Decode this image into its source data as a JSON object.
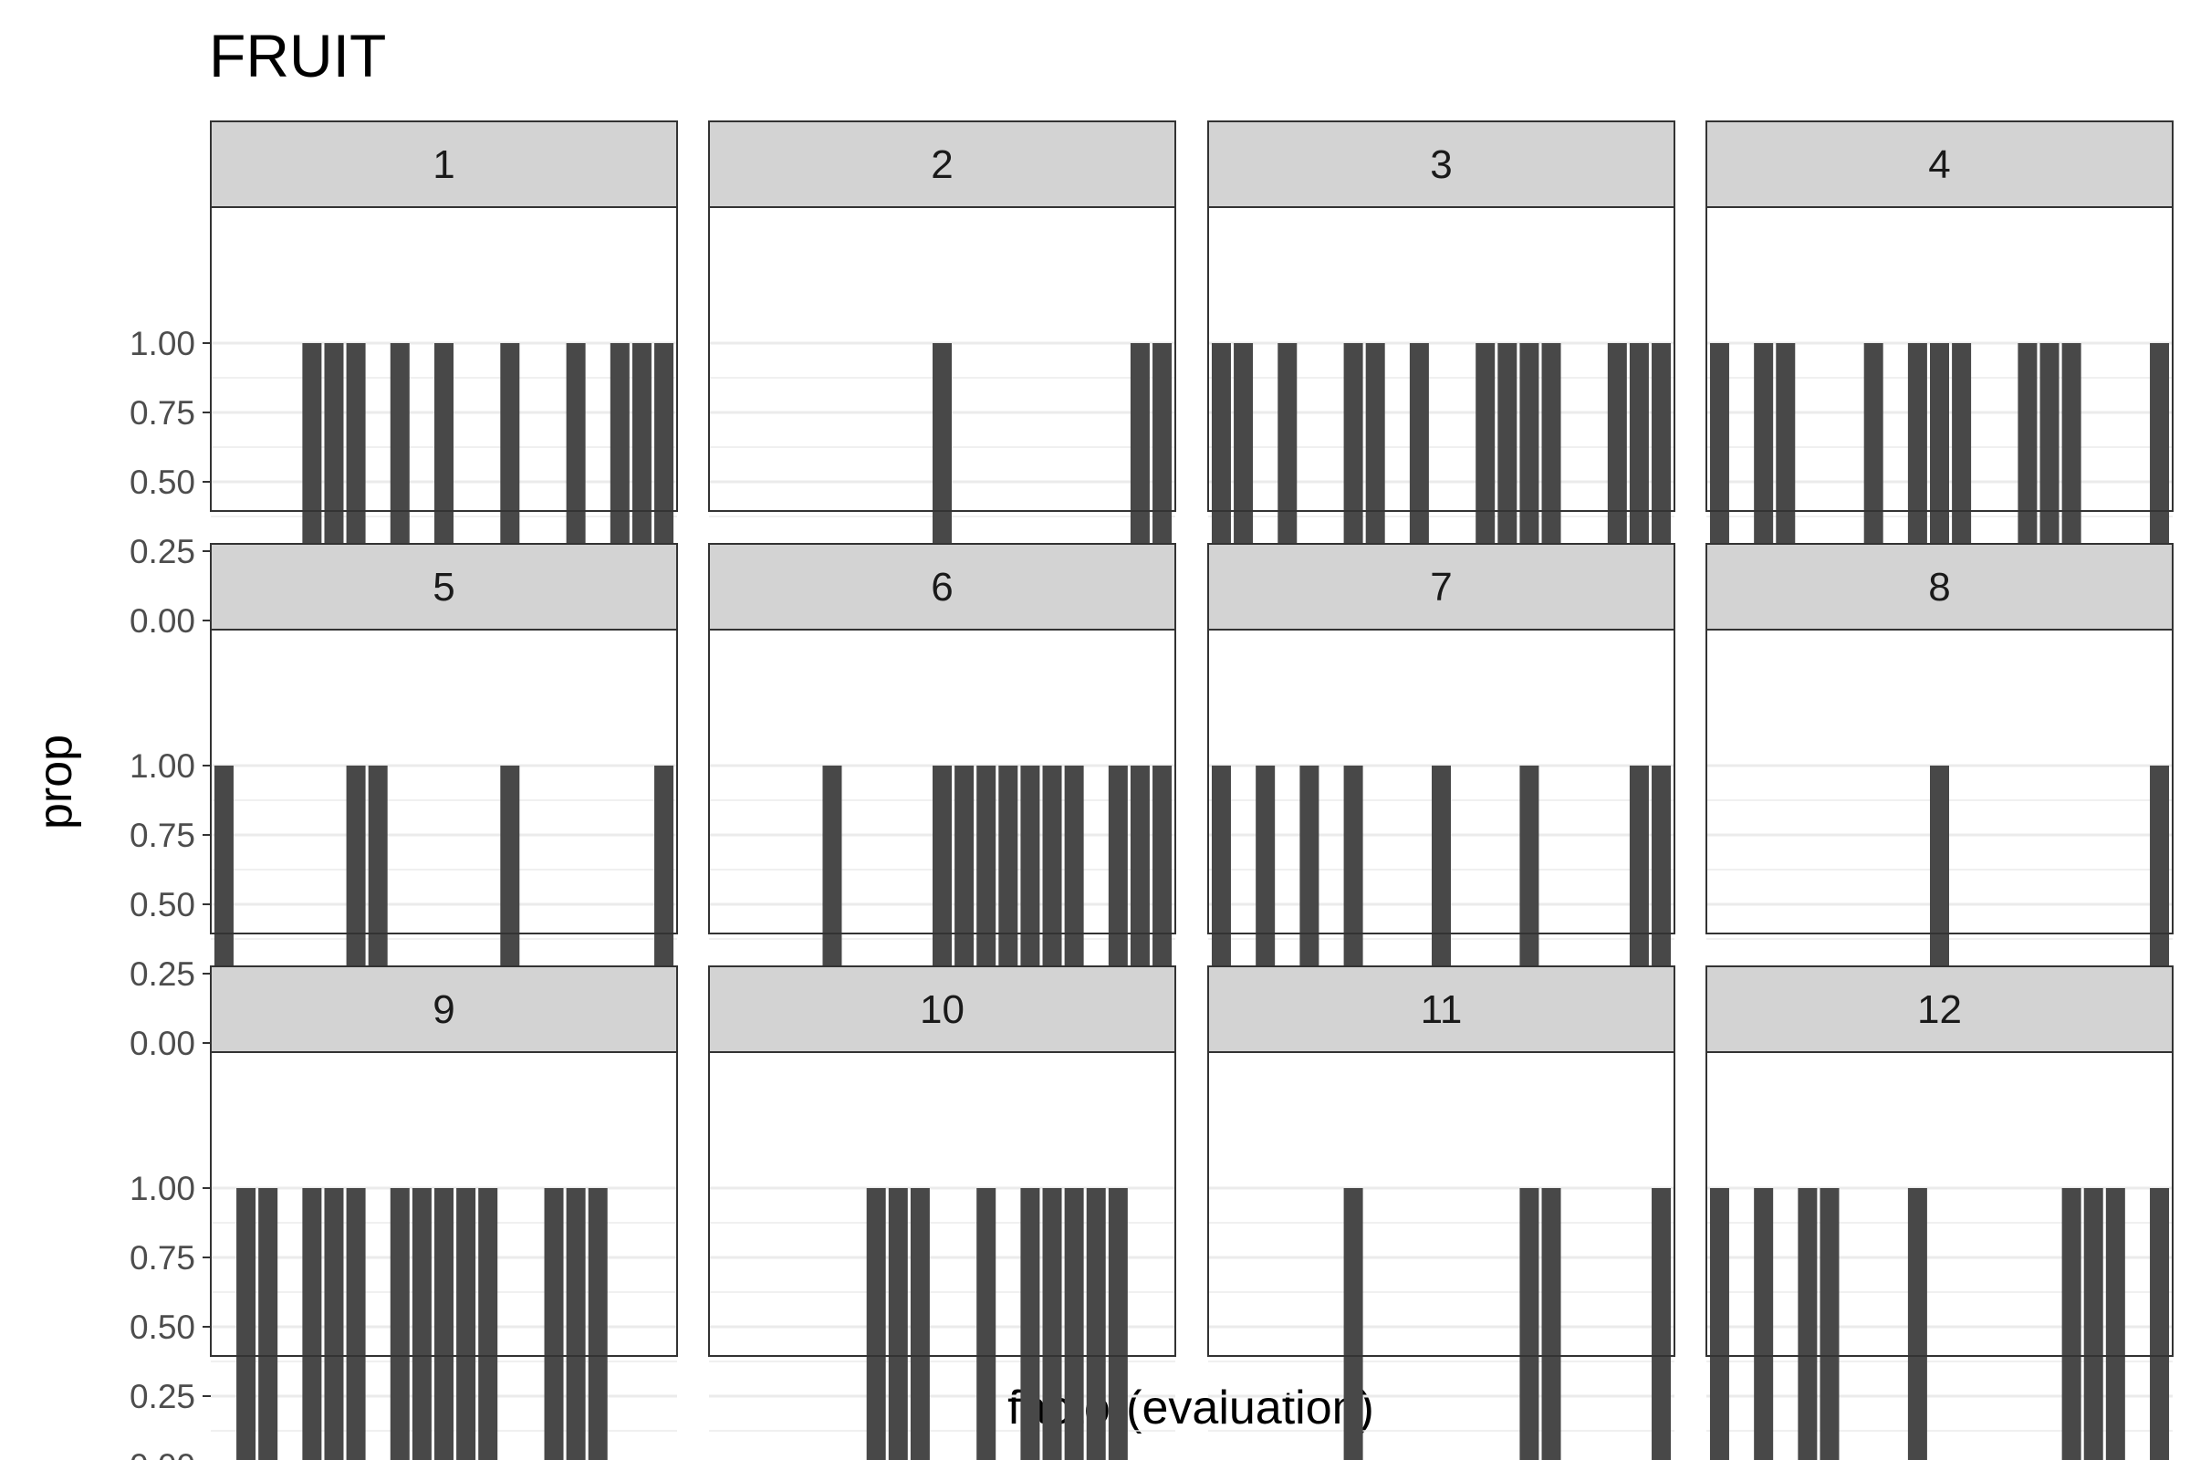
{
  "chart_data": {
    "type": "bar",
    "title": "FRUIT",
    "xlabel": "factor(evaluation)",
    "ylabel": "prop",
    "ylim": [
      0,
      1
    ],
    "y_ticks": [
      "0.00",
      "0.25",
      "0.50",
      "0.75",
      "1.00"
    ],
    "x_tick_labels_shown": false,
    "grid": true,
    "facet_layout": {
      "rows": 3,
      "cols": 4
    },
    "n_positions": 21,
    "bar_color": "#484848",
    "strip_color": "#d3d3d3",
    "panels": [
      {
        "label": "1",
        "positions": [
          5,
          6,
          7,
          9,
          11,
          14,
          17,
          19,
          20,
          21
        ],
        "value": 1.0
      },
      {
        "label": "2",
        "positions": [
          11,
          20,
          21
        ],
        "value": 1.0
      },
      {
        "label": "3",
        "positions": [
          1,
          2,
          4,
          7,
          8,
          10,
          13,
          14,
          15,
          16,
          19,
          20,
          21
        ],
        "value": 1.0
      },
      {
        "label": "4",
        "positions": [
          1,
          3,
          4,
          8,
          10,
          11,
          12,
          15,
          16,
          17,
          21
        ],
        "value": 1.0
      },
      {
        "label": "5",
        "positions": [
          1,
          7,
          8,
          14,
          21
        ],
        "value": 1.0
      },
      {
        "label": "6",
        "positions": [
          6,
          11,
          12,
          13,
          14,
          15,
          16,
          17,
          19,
          20,
          21
        ],
        "value": 1.0
      },
      {
        "label": "7",
        "positions": [
          1,
          3,
          5,
          7,
          11,
          15,
          20,
          21
        ],
        "value": 1.0
      },
      {
        "label": "8",
        "positions": [
          11,
          21
        ],
        "value": 1.0
      },
      {
        "label": "9",
        "positions": [
          2,
          3,
          5,
          6,
          7,
          9,
          10,
          11,
          12,
          13,
          16,
          17,
          18
        ],
        "value": 1.0
      },
      {
        "label": "10",
        "positions": [
          8,
          9,
          10,
          13,
          15,
          16,
          17,
          18,
          19
        ],
        "value": 1.0
      },
      {
        "label": "11",
        "positions": [
          7,
          15,
          16,
          21
        ],
        "value": 1.0
      },
      {
        "label": "12",
        "positions": [
          1,
          3,
          5,
          6,
          10,
          17,
          18,
          19,
          21
        ],
        "value": 1.0
      }
    ]
  }
}
